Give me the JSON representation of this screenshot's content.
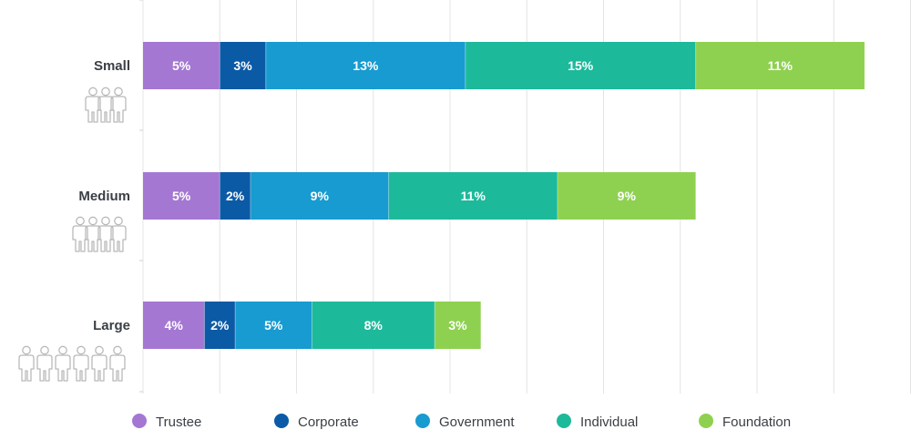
{
  "chart_data": {
    "type": "bar",
    "orientation": "horizontal",
    "stacked": true,
    "categories": [
      "Small",
      "Medium",
      "Large"
    ],
    "series": [
      {
        "name": "Trustee",
        "color": "#a477d2",
        "values": [
          5,
          5,
          4
        ]
      },
      {
        "name": "Corporate",
        "color": "#0b5aa6",
        "values": [
          3,
          2,
          2
        ]
      },
      {
        "name": "Government",
        "color": "#179bd0",
        "values": [
          13,
          9,
          5
        ]
      },
      {
        "name": "Individual",
        "color": "#1db99b",
        "values": [
          15,
          11,
          8
        ]
      },
      {
        "name": "Foundation",
        "color": "#8ed150",
        "values": [
          11,
          9,
          3
        ]
      }
    ],
    "data_labels": [
      [
        "5%",
        "3%",
        "13%",
        "15%",
        "11%"
      ],
      [
        "5%",
        "2%",
        "9%",
        "11%",
        "9%"
      ],
      [
        "4%",
        "2%",
        "5%",
        "8%",
        "3%"
      ]
    ],
    "category_icons": [
      "people-group-icon",
      "people-group-icon",
      "people-group-icon"
    ],
    "xlim": [
      0,
      50
    ],
    "grid": true,
    "legend_position": "bottom",
    "title": "",
    "xlabel": "",
    "ylabel": ""
  }
}
